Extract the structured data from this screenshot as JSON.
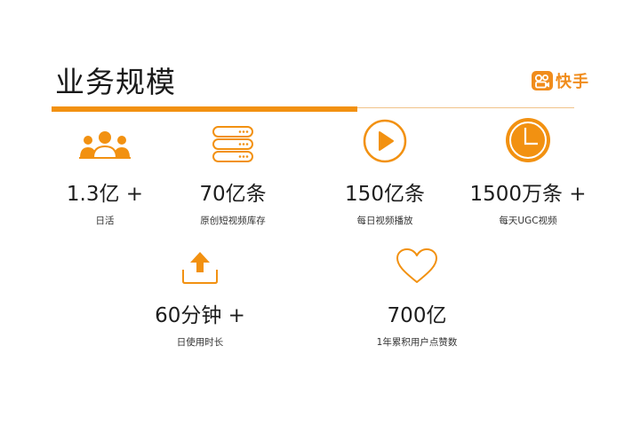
{
  "slide": {
    "title": "业务规模",
    "brand": "快手"
  },
  "colors": {
    "accent": "#f29111",
    "accent_light": "#f0c38a"
  },
  "stats": [
    {
      "icon": "users-icon",
      "value": "1.3亿 +",
      "label": "日活"
    },
    {
      "icon": "server-stack-icon",
      "value": "70亿条",
      "label": "原创短视频库存"
    },
    {
      "icon": "play-circle-icon",
      "value": "150亿条",
      "label": "每日视频播放"
    },
    {
      "icon": "clock-icon",
      "value": "1500万条 +",
      "label": "每天UGC视频"
    },
    {
      "icon": "upload-icon",
      "value": "60分钟 +",
      "label": "日使用时长"
    },
    {
      "icon": "heart-icon",
      "value": "700亿",
      "label": "1年累积用户点赞数"
    }
  ]
}
